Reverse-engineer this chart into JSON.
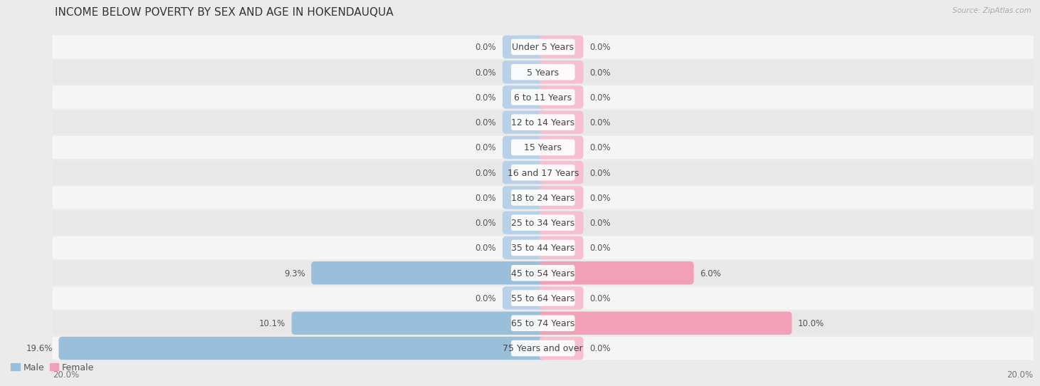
{
  "title": "INCOME BELOW POVERTY BY SEX AND AGE IN HOKENDAUQUA",
  "source": "Source: ZipAtlas.com",
  "categories": [
    "Under 5 Years",
    "5 Years",
    "6 to 11 Years",
    "12 to 14 Years",
    "15 Years",
    "16 and 17 Years",
    "18 to 24 Years",
    "25 to 34 Years",
    "35 to 44 Years",
    "45 to 54 Years",
    "55 to 64 Years",
    "65 to 74 Years",
    "75 Years and over"
  ],
  "male_values": [
    0.0,
    0.0,
    0.0,
    0.0,
    0.0,
    0.0,
    0.0,
    0.0,
    0.0,
    9.3,
    0.0,
    10.1,
    19.6
  ],
  "female_values": [
    0.0,
    0.0,
    0.0,
    0.0,
    0.0,
    0.0,
    0.0,
    0.0,
    0.0,
    6.0,
    0.0,
    10.0,
    0.0
  ],
  "male_color": "#9abfdb",
  "female_color": "#f2a0b8",
  "male_color_light": "#b8d0e8",
  "female_color_light": "#f7c0d0",
  "male_label": "Male",
  "female_label": "Female",
  "axis_max": 20.0,
  "bg_color": "#ebebeb",
  "row_light_color": "#f5f5f5",
  "row_dark_color": "#e8e8e8",
  "title_fontsize": 11,
  "label_fontsize": 9,
  "value_fontsize": 8.5,
  "axis_label_fontsize": 8.5,
  "stub_size": 1.5
}
